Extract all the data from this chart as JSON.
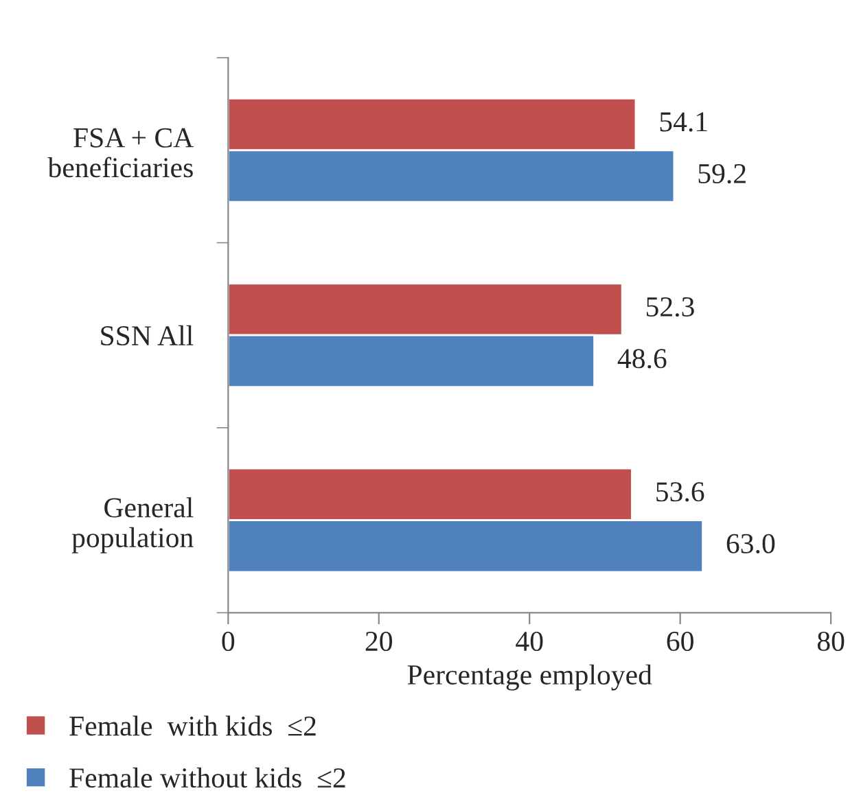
{
  "chart_data": {
    "type": "bar",
    "orientation": "horizontal",
    "xlabel": "Percentage employed",
    "categories": [
      "FSA + CA\nbeneficiaries",
      "SSN All",
      "General\npopulation"
    ],
    "series": [
      {
        "name": "Female  with kids  ≤2",
        "color": "#c0504d",
        "values": [
          54.1,
          52.3,
          53.6
        ],
        "value_labels": [
          "54.1",
          "52.3",
          "53.6"
        ]
      },
      {
        "name": "Female without kids  ≤2",
        "color": "#4f81bd",
        "values": [
          59.2,
          48.6,
          63.0
        ],
        "value_labels": [
          "59.2",
          "48.6",
          "63.0"
        ]
      }
    ],
    "xlim": [
      0,
      80
    ],
    "xticks": [
      0,
      20,
      40,
      60,
      80
    ],
    "grid": false,
    "legend": "bottom left"
  }
}
